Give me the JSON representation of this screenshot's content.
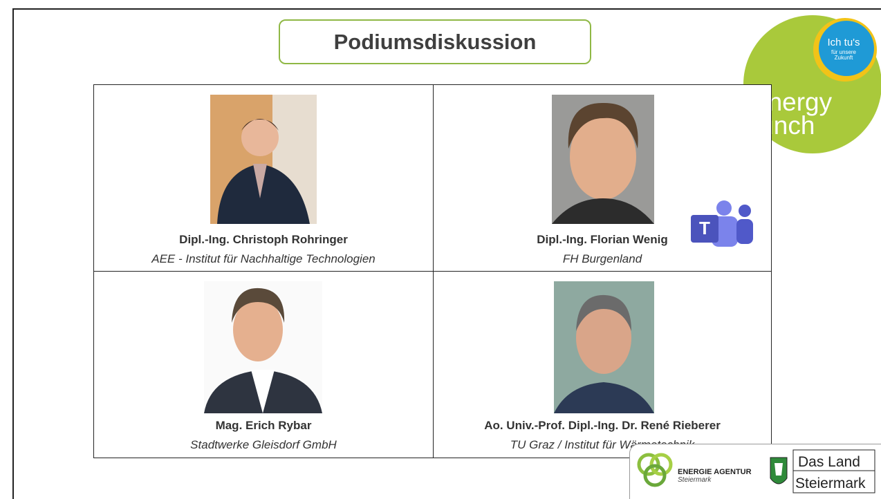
{
  "header": {
    "title": "Podiumsdiskussion"
  },
  "logo": {
    "badge_main": "Ich tu's",
    "badge_sub_1": "für unsere",
    "badge_sub_2": "Zukunft",
    "word_1": "energy",
    "word_2": "lunch"
  },
  "panelists": [
    {
      "name": "Dipl.-Ing. Christoph Rohringer",
      "affiliation": "AEE - Institut für Nachhaltige Technologien"
    },
    {
      "name": "Dipl.-Ing. Florian Wenig",
      "affiliation": "FH Burgenland"
    },
    {
      "name": "Mag. Erich Rybar",
      "affiliation": "Stadtwerke Gleisdorf GmbH"
    },
    {
      "name": "Ao. Univ.-Prof. Dipl.-Ing. Dr. René Rieberer",
      "affiliation": "TU Graz / Institut für Wärmetechnik"
    }
  ],
  "teams_icon": {
    "letter": "T"
  },
  "footer": {
    "agency_name": "ENERGIE AGENTUR",
    "agency_region": "Steiermark",
    "land_line_1": "Das Land",
    "land_line_2": "Steiermark"
  }
}
